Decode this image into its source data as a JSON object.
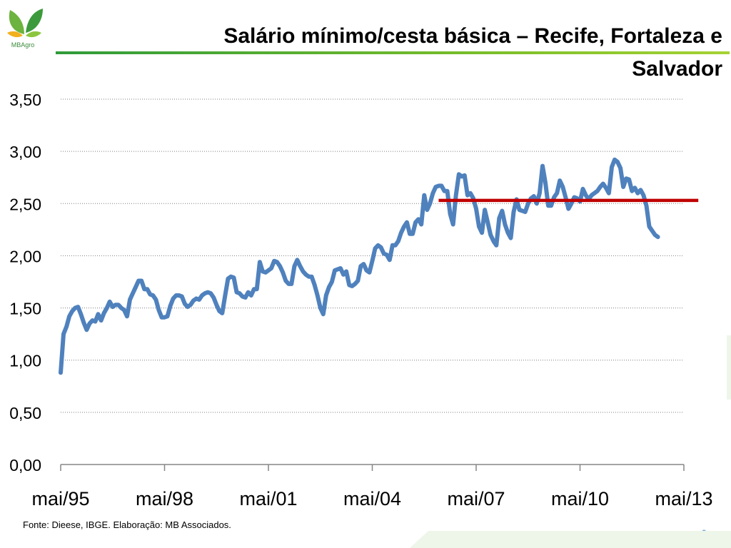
{
  "header": {
    "logo_text": "MBAgro",
    "title_line1": "Salário mínimo/cesta básica – Recife, Fortaleza e",
    "title_line2": "Salvador"
  },
  "footer": {
    "source": "Fonte: Dieese, IBGE. Elaboração: MB Associados.",
    "page_number": "9"
  },
  "colors": {
    "series": "#4f81bd",
    "reference_line": "#c00000",
    "brand_green": "#3c9a3c"
  },
  "chart_data": {
    "type": "line",
    "title": "Salário mínimo/cesta básica – Recife, Fortaleza e Salvador",
    "xlabel": "",
    "ylabel": "",
    "ylim": [
      0,
      3.5
    ],
    "y_ticks": [
      "0,00",
      "0,50",
      "1,00",
      "1,50",
      "2,00",
      "2,50",
      "3,00",
      "3,50"
    ],
    "y_tick_values": [
      0,
      0.5,
      1,
      1.5,
      2,
      2.5,
      3,
      3.5
    ],
    "x_tick_labels": [
      "mai/95",
      "mai/98",
      "mai/01",
      "mai/04",
      "mai/07",
      "mai/10",
      "mai/13"
    ],
    "x_range_months": [
      0,
      216
    ],
    "grid": "horizontal dotted",
    "series": [
      {
        "values": [
          [
            0,
            0.88
          ],
          [
            1,
            1.25
          ],
          [
            2,
            1.32
          ],
          [
            3,
            1.42
          ],
          [
            4,
            1.47
          ],
          [
            5,
            1.5
          ],
          [
            6,
            1.51
          ],
          [
            7,
            1.44
          ],
          [
            8,
            1.36
          ],
          [
            9,
            1.29
          ],
          [
            10,
            1.35
          ],
          [
            11,
            1.38
          ],
          [
            12,
            1.37
          ],
          [
            13,
            1.44
          ],
          [
            14,
            1.38
          ],
          [
            15,
            1.45
          ],
          [
            16,
            1.5
          ],
          [
            17,
            1.56
          ],
          [
            18,
            1.51
          ],
          [
            19,
            1.53
          ],
          [
            20,
            1.53
          ],
          [
            21,
            1.5
          ],
          [
            22,
            1.48
          ],
          [
            23,
            1.42
          ],
          [
            24,
            1.58
          ],
          [
            25,
            1.64
          ],
          [
            26,
            1.7
          ],
          [
            27,
            1.76
          ],
          [
            28,
            1.76
          ],
          [
            29,
            1.68
          ],
          [
            30,
            1.68
          ],
          [
            31,
            1.63
          ],
          [
            32,
            1.62
          ],
          [
            33,
            1.58
          ],
          [
            34,
            1.48
          ],
          [
            35,
            1.41
          ],
          [
            36,
            1.41
          ],
          [
            37,
            1.42
          ],
          [
            38,
            1.52
          ],
          [
            39,
            1.59
          ],
          [
            40,
            1.62
          ],
          [
            41,
            1.62
          ],
          [
            42,
            1.61
          ],
          [
            43,
            1.54
          ],
          [
            44,
            1.51
          ],
          [
            45,
            1.53
          ],
          [
            46,
            1.57
          ],
          [
            47,
            1.59
          ],
          [
            48,
            1.58
          ],
          [
            49,
            1.62
          ],
          [
            50,
            1.64
          ],
          [
            51,
            1.65
          ],
          [
            52,
            1.64
          ],
          [
            53,
            1.6
          ],
          [
            54,
            1.53
          ],
          [
            55,
            1.47
          ],
          [
            56,
            1.45
          ],
          [
            57,
            1.62
          ],
          [
            58,
            1.78
          ],
          [
            59,
            1.8
          ],
          [
            60,
            1.79
          ],
          [
            61,
            1.65
          ],
          [
            62,
            1.64
          ],
          [
            63,
            1.61
          ],
          [
            64,
            1.6
          ],
          [
            65,
            1.65
          ],
          [
            66,
            1.62
          ],
          [
            67,
            1.68
          ],
          [
            68,
            1.68
          ],
          [
            69,
            1.94
          ],
          [
            70,
            1.85
          ],
          [
            71,
            1.84
          ],
          [
            72,
            1.86
          ],
          [
            73,
            1.88
          ],
          [
            74,
            1.95
          ],
          [
            75,
            1.94
          ],
          [
            76,
            1.9
          ],
          [
            77,
            1.84
          ],
          [
            78,
            1.76
          ],
          [
            79,
            1.73
          ],
          [
            80,
            1.73
          ],
          [
            81,
            1.9
          ],
          [
            82,
            1.96
          ],
          [
            83,
            1.9
          ],
          [
            84,
            1.85
          ],
          [
            85,
            1.82
          ],
          [
            86,
            1.8
          ],
          [
            87,
            1.8
          ],
          [
            88,
            1.72
          ],
          [
            89,
            1.62
          ],
          [
            90,
            1.5
          ],
          [
            91,
            1.44
          ],
          [
            92,
            1.62
          ],
          [
            93,
            1.7
          ],
          [
            94,
            1.75
          ],
          [
            95,
            1.86
          ],
          [
            96,
            1.87
          ],
          [
            97,
            1.88
          ],
          [
            98,
            1.82
          ],
          [
            99,
            1.85
          ],
          [
            100,
            1.72
          ],
          [
            101,
            1.71
          ],
          [
            102,
            1.73
          ],
          [
            103,
            1.76
          ],
          [
            104,
            1.9
          ],
          [
            105,
            1.92
          ],
          [
            106,
            1.86
          ],
          [
            107,
            1.84
          ],
          [
            108,
            1.95
          ],
          [
            109,
            2.07
          ],
          [
            110,
            2.1
          ],
          [
            111,
            2.08
          ],
          [
            112,
            2.02
          ],
          [
            113,
            2.01
          ],
          [
            114,
            1.96
          ],
          [
            115,
            2.1
          ],
          [
            116,
            2.1
          ],
          [
            117,
            2.14
          ],
          [
            118,
            2.22
          ],
          [
            119,
            2.28
          ],
          [
            120,
            2.32
          ],
          [
            121,
            2.21
          ],
          [
            122,
            2.21
          ],
          [
            123,
            2.32
          ],
          [
            124,
            2.35
          ],
          [
            125,
            2.3
          ],
          [
            126,
            2.58
          ],
          [
            127,
            2.44
          ],
          [
            128,
            2.5
          ],
          [
            129,
            2.6
          ],
          [
            130,
            2.66
          ],
          [
            131,
            2.67
          ],
          [
            132,
            2.67
          ],
          [
            133,
            2.62
          ],
          [
            134,
            2.62
          ],
          [
            135,
            2.4
          ],
          [
            136,
            2.3
          ],
          [
            137,
            2.58
          ],
          [
            138,
            2.78
          ],
          [
            139,
            2.76
          ],
          [
            140,
            2.77
          ],
          [
            141,
            2.58
          ],
          [
            142,
            2.6
          ],
          [
            143,
            2.55
          ],
          [
            144,
            2.45
          ],
          [
            145,
            2.28
          ],
          [
            146,
            2.22
          ],
          [
            147,
            2.44
          ],
          [
            148,
            2.32
          ],
          [
            149,
            2.2
          ],
          [
            150,
            2.14
          ],
          [
            151,
            2.1
          ],
          [
            152,
            2.36
          ],
          [
            153,
            2.43
          ],
          [
            154,
            2.3
          ],
          [
            155,
            2.22
          ],
          [
            156,
            2.17
          ],
          [
            157,
            2.42
          ],
          [
            158,
            2.54
          ],
          [
            159,
            2.44
          ],
          [
            160,
            2.43
          ],
          [
            161,
            2.42
          ],
          [
            162,
            2.5
          ],
          [
            163,
            2.55
          ],
          [
            164,
            2.57
          ],
          [
            165,
            2.5
          ],
          [
            166,
            2.6
          ],
          [
            167,
            2.86
          ],
          [
            168,
            2.7
          ],
          [
            169,
            2.48
          ],
          [
            170,
            2.48
          ],
          [
            171,
            2.56
          ],
          [
            172,
            2.6
          ],
          [
            173,
            2.72
          ],
          [
            174,
            2.66
          ],
          [
            175,
            2.56
          ],
          [
            176,
            2.45
          ],
          [
            177,
            2.5
          ],
          [
            178,
            2.56
          ],
          [
            179,
            2.55
          ],
          [
            180,
            2.52
          ],
          [
            181,
            2.64
          ],
          [
            182,
            2.58
          ],
          [
            183,
            2.54
          ],
          [
            184,
            2.58
          ],
          [
            185,
            2.6
          ],
          [
            186,
            2.62
          ],
          [
            187,
            2.66
          ],
          [
            188,
            2.69
          ],
          [
            189,
            2.65
          ],
          [
            190,
            2.6
          ],
          [
            191,
            2.85
          ],
          [
            192,
            2.92
          ],
          [
            193,
            2.9
          ],
          [
            194,
            2.84
          ],
          [
            195,
            2.66
          ],
          [
            196,
            2.74
          ],
          [
            197,
            2.73
          ],
          [
            198,
            2.62
          ],
          [
            199,
            2.65
          ],
          [
            200,
            2.6
          ],
          [
            201,
            2.63
          ],
          [
            202,
            2.58
          ],
          [
            203,
            2.48
          ],
          [
            204,
            2.28
          ],
          [
            205,
            2.24
          ],
          [
            206,
            2.2
          ],
          [
            207,
            2.18
          ]
        ]
      }
    ],
    "reference_line": {
      "y": 2.53,
      "x_start": 131,
      "x_end": 221
    }
  }
}
